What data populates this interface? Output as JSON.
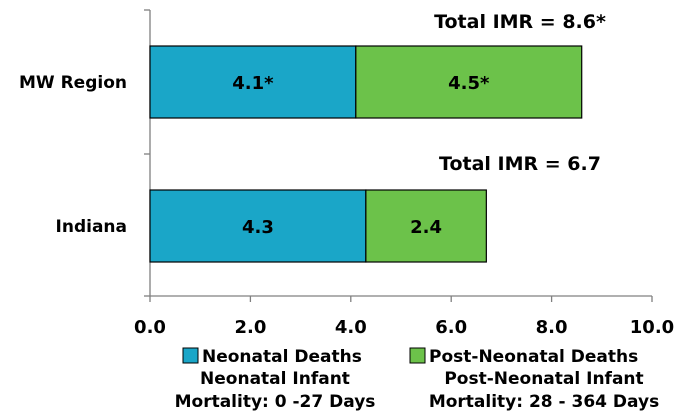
{
  "chart_data": {
    "type": "bar",
    "orientation": "horizontal",
    "stacked": true,
    "categories": [
      "MW Region",
      "Indiana"
    ],
    "series": [
      {
        "name": "Neonatal Deaths",
        "values": [
          4.1,
          4.3
        ],
        "labels": [
          "4.1*",
          "4.3"
        ],
        "color": "#1aa6c8"
      },
      {
        "name": "Post-Neonatal Deaths",
        "values": [
          4.5,
          2.4
        ],
        "labels": [
          "4.5*",
          "2.4"
        ],
        "color": "#6cc24a"
      }
    ],
    "totals": [
      "Total IMR = 8.6*",
      "Total IMR = 6.7"
    ],
    "xlim": [
      0,
      10
    ],
    "xticks": [
      "0.0",
      "2.0",
      "4.0",
      "6.0",
      "8.0",
      "10.0"
    ],
    "grid": false,
    "legend_position": "bottom",
    "legend": [
      {
        "name": "Neonatal Deaths",
        "sublabel_1": "Neonatal Infant",
        "sublabel_2": "Mortality: 0 -27 Days",
        "color": "#1aa6c8"
      },
      {
        "name": "Post-Neonatal Deaths",
        "sublabel_1": "Post-Neonatal Infant",
        "sublabel_2": "Mortality: 28 - 364 Days",
        "color": "#6cc24a"
      }
    ]
  }
}
